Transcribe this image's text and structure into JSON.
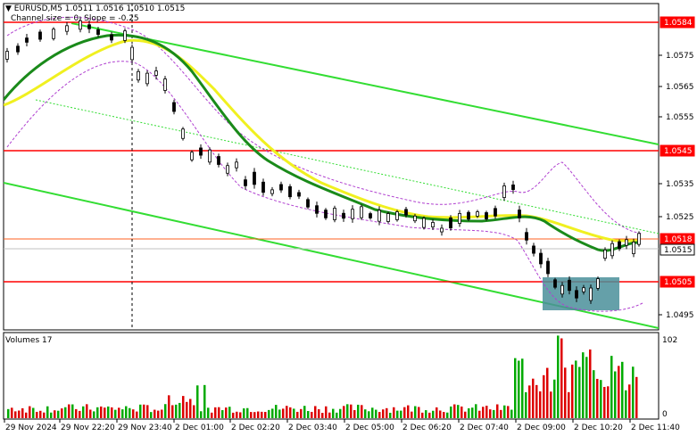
{
  "header": {
    "symbol_line": "EURUSD,M5  1.0511 1.0516 1.0510 1.0515",
    "indicator_line": "Channel size = 0; Slope = -0.25"
  },
  "volumes_label": "Volumes 17",
  "price_axis": {
    "labels": [
      "1.0575",
      "1.0565",
      "1.0555",
      "1.0535",
      "1.0525",
      "1.0495"
    ],
    "highlight_levels": [
      {
        "label": "1.0584",
        "color": "#ff0000"
      },
      {
        "label": "1.0545",
        "color": "#ff0000"
      },
      {
        "label": "1.0518",
        "color": "#ff0000"
      },
      {
        "label": "1.0515",
        "color": "#ffffff"
      },
      {
        "label": "1.0505",
        "color": "#ff0000"
      }
    ]
  },
  "volume_axis": {
    "max_label": "102",
    "min_label": "0"
  },
  "time_axis": {
    "labels": [
      "29 Nov 2024",
      "29 Nov 22:20",
      "29 Nov 23:40",
      "2 Dec 01:00",
      "2 Dec 02:20",
      "2 Dec 03:40",
      "2 Dec 05:00",
      "2 Dec 06:20",
      "2 Dec 07:40",
      "2 Dec 09:00",
      "2 Dec 10:20",
      "2 Dec 11:40"
    ]
  },
  "colors": {
    "channel": "#33dd33",
    "ma_fast": "#1a8a1a",
    "ma_slow": "#f0f020",
    "resistance": "#ff0000",
    "envelope": "#b040d0",
    "candles": "#000000",
    "box": "#4a8f9a",
    "vol_up": "#00aa00",
    "vol_down": "#dd0000"
  }
}
